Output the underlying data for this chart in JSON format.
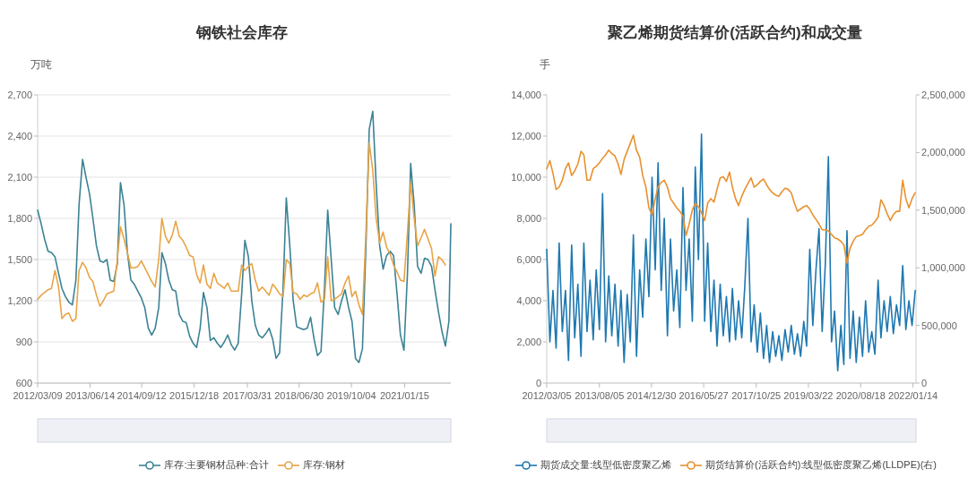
{
  "chart_data": [
    {
      "type": "line",
      "title": "钢铁社会库存",
      "ylabel": "万吨",
      "x": [
        "2012-03-09",
        "2012-04-09",
        "2012-05-09",
        "2012-06-09",
        "2012-07-09",
        "2012-08-09",
        "2012-09-09",
        "2012-10-09",
        "2012-11-09",
        "2012-12-09",
        "2013-01-09",
        "2013-02-09",
        "2013-03-09",
        "2013-04-09",
        "2013-05-09",
        "2013-06-09",
        "2013-07-09",
        "2013-08-09",
        "2013-09-09",
        "2013-10-09",
        "2013-11-09",
        "2013-12-09",
        "2014-01-09",
        "2014-02-09",
        "2014-03-09",
        "2014-04-09",
        "2014-05-09",
        "2014-06-09",
        "2014-07-09",
        "2014-08-09",
        "2014-09-09",
        "2014-10-09",
        "2014-11-09",
        "2014-12-09",
        "2015-01-09",
        "2015-02-09",
        "2015-03-09",
        "2015-04-09",
        "2015-05-09",
        "2015-06-09",
        "2015-07-09",
        "2015-08-09",
        "2015-09-09",
        "2015-10-09",
        "2015-11-09",
        "2015-12-09",
        "2016-01-09",
        "2016-02-09",
        "2016-03-09",
        "2016-04-09",
        "2016-05-09",
        "2016-06-09",
        "2016-07-09",
        "2016-08-09",
        "2016-09-09",
        "2016-10-09",
        "2016-11-09",
        "2016-12-09",
        "2017-01-09",
        "2017-02-09",
        "2017-03-09",
        "2017-04-09",
        "2017-05-09",
        "2017-06-09",
        "2017-07-09",
        "2017-08-09",
        "2017-09-09",
        "2017-10-09",
        "2017-11-09",
        "2017-12-09",
        "2018-01-09",
        "2018-02-09",
        "2018-03-09",
        "2018-04-09",
        "2018-05-09",
        "2018-06-09",
        "2018-07-09",
        "2018-08-09",
        "2018-09-09",
        "2018-10-09",
        "2018-11-09",
        "2018-12-09",
        "2019-01-09",
        "2019-02-09",
        "2019-03-09",
        "2019-04-09",
        "2019-05-09",
        "2019-06-09",
        "2019-07-09",
        "2019-08-09",
        "2019-09-09",
        "2019-10-09",
        "2019-11-09",
        "2019-12-09",
        "2020-01-09",
        "2020-02-09",
        "2020-03-09",
        "2020-04-09",
        "2020-05-09",
        "2020-06-09",
        "2020-07-09",
        "2020-08-09",
        "2020-09-09",
        "2020-10-09",
        "2020-11-09",
        "2020-12-09",
        "2021-01-09",
        "2021-02-09",
        "2021-03-09",
        "2021-04-09",
        "2021-05-09",
        "2021-06-09",
        "2021-07-09",
        "2021-08-09",
        "2021-09-09",
        "2021-10-09",
        "2021-11-09",
        "2021-12-09",
        "2022-01-09",
        "2022-02-09",
        "2022-02-26"
      ],
      "xlim": [
        "2012-03-09",
        "2022-02-26"
      ],
      "xticks": [
        {
          "value": "2012-03-09",
          "label": "2012/03/09"
        },
        {
          "value": "2013-06-14",
          "label": "2013/06/14"
        },
        {
          "value": "2014-09-12",
          "label": "2014/09/12"
        },
        {
          "value": "2015-12-18",
          "label": "2015/12/18"
        },
        {
          "value": "2017-03-31",
          "label": "2017/03/31"
        },
        {
          "value": "2018-06-30",
          "label": "2018/06/30"
        },
        {
          "value": "2019-10-04",
          "label": "2019/10/04"
        },
        {
          "value": "2021-01-15",
          "label": "2021/01/15"
        }
      ],
      "ylim": [
        600,
        2700
      ],
      "yticks": [
        600,
        900,
        {
          "value": 1200,
          "label": "1,200"
        },
        {
          "value": 1500,
          "label": "1,500"
        },
        {
          "value": 1800,
          "label": "1,800"
        },
        {
          "value": 2100,
          "label": "2,100"
        },
        {
          "value": 2400,
          "label": "2,400"
        },
        {
          "value": 2700,
          "label": "2,700"
        }
      ],
      "grid": "y",
      "legend": "bottom",
      "series": [
        {
          "name": "库存:主要钢材品种:合计",
          "color": "#3b8295",
          "values": [
            1860,
            1760,
            1650,
            1560,
            1550,
            1520,
            1400,
            1290,
            1230,
            1190,
            1170,
            1350,
            1900,
            2230,
            2100,
            1980,
            1800,
            1600,
            1490,
            1480,
            1500,
            1350,
            1340,
            1470,
            2060,
            1900,
            1550,
            1350,
            1320,
            1270,
            1220,
            1150,
            1000,
            950,
            1000,
            1150,
            1550,
            1470,
            1350,
            1280,
            1270,
            1100,
            1050,
            1040,
            940,
            890,
            860,
            1000,
            1260,
            1150,
            910,
            930,
            890,
            860,
            900,
            950,
            880,
            840,
            890,
            1250,
            1640,
            1520,
            1200,
            1020,
            950,
            930,
            960,
            1000,
            920,
            780,
            820,
            1300,
            1950,
            1600,
            1200,
            1010,
            1000,
            990,
            1000,
            1080,
            920,
            800,
            830,
            1300,
            1860,
            1500,
            1150,
            1100,
            1200,
            1280,
            1150,
            1050,
            780,
            750,
            850,
            1600,
            2450,
            2580,
            2050,
            1600,
            1430,
            1530,
            1560,
            1530,
            1250,
            950,
            840,
            1400,
            2200,
            1900,
            1450,
            1400,
            1510,
            1500,
            1450,
            1280,
            1120,
            980,
            870,
            1050,
            1760
          ]
        },
        {
          "name": "库存:钢材",
          "color": "#e8a445",
          "values": [
            1210,
            1240,
            1260,
            1280,
            1290,
            1420,
            1300,
            1070,
            1100,
            1110,
            1050,
            1070,
            1420,
            1480,
            1440,
            1370,
            1340,
            1240,
            1160,
            1200,
            1250,
            1260,
            1270,
            1500,
            1740,
            1650,
            1550,
            1440,
            1440,
            1450,
            1490,
            1440,
            1390,
            1340,
            1300,
            1500,
            1800,
            1670,
            1620,
            1680,
            1780,
            1670,
            1640,
            1590,
            1530,
            1520,
            1390,
            1330,
            1460,
            1320,
            1290,
            1400,
            1330,
            1310,
            1290,
            1330,
            1270,
            1270,
            1270,
            1460,
            1420,
            1450,
            1470,
            1350,
            1270,
            1300,
            1270,
            1240,
            1320,
            1290,
            1250,
            1230,
            1500,
            1470,
            1260,
            1250,
            1210,
            1240,
            1230,
            1250,
            1260,
            1330,
            1190,
            1210,
            1520,
            1200,
            1210,
            1230,
            1250,
            1330,
            1380,
            1230,
            1270,
            1170,
            1100,
            1700,
            2350,
            2150,
            1800,
            1620,
            1700,
            1590,
            1540,
            1460,
            1410,
            1350,
            1340,
            1700,
            2060,
            1800,
            1600,
            1660,
            1720,
            1650,
            1580,
            1380,
            1520,
            1500,
            1460,
            null,
            null
          ]
        }
      ]
    },
    {
      "type": "line",
      "title": "聚乙烯期货结算价(活跃合约)和成交量",
      "ylabel": "手",
      "x": [
        "2012-03-05",
        "2012-04-05",
        "2012-05-05",
        "2012-06-05",
        "2012-07-05",
        "2012-08-05",
        "2012-09-05",
        "2012-10-05",
        "2012-11-05",
        "2012-12-05",
        "2013-01-05",
        "2013-02-05",
        "2013-03-05",
        "2013-04-05",
        "2013-05-05",
        "2013-06-05",
        "2013-07-05",
        "2013-08-05",
        "2013-09-05",
        "2013-10-05",
        "2013-11-05",
        "2013-12-05",
        "2014-01-05",
        "2014-02-05",
        "2014-03-05",
        "2014-04-05",
        "2014-05-05",
        "2014-06-05",
        "2014-07-05",
        "2014-08-05",
        "2014-09-05",
        "2014-10-05",
        "2014-11-05",
        "2014-12-05",
        "2015-01-05",
        "2015-02-05",
        "2015-03-05",
        "2015-04-05",
        "2015-05-05",
        "2015-06-05",
        "2015-07-05",
        "2015-08-05",
        "2015-09-05",
        "2015-10-05",
        "2015-11-05",
        "2015-12-05",
        "2016-01-05",
        "2016-02-05",
        "2016-03-05",
        "2016-04-05",
        "2016-05-05",
        "2016-06-05",
        "2016-07-05",
        "2016-08-05",
        "2016-09-05",
        "2016-10-05",
        "2016-11-05",
        "2016-12-05",
        "2017-01-05",
        "2017-02-05",
        "2017-03-05",
        "2017-04-05",
        "2017-05-05",
        "2017-06-05",
        "2017-07-05",
        "2017-08-05",
        "2017-09-05",
        "2017-10-05",
        "2017-11-05",
        "2017-12-05",
        "2018-01-05",
        "2018-02-05",
        "2018-03-05",
        "2018-04-05",
        "2018-05-05",
        "2018-06-05",
        "2018-07-05",
        "2018-08-05",
        "2018-09-05",
        "2018-10-05",
        "2018-11-05",
        "2018-12-05",
        "2019-01-05",
        "2019-02-05",
        "2019-03-05",
        "2019-04-05",
        "2019-05-05",
        "2019-06-05",
        "2019-07-05",
        "2019-08-05",
        "2019-09-05",
        "2019-10-05",
        "2019-11-05",
        "2019-12-05",
        "2020-01-05",
        "2020-02-05",
        "2020-03-05",
        "2020-04-05",
        "2020-05-05",
        "2020-06-05",
        "2020-07-05",
        "2020-08-05",
        "2020-09-05",
        "2020-10-05",
        "2020-11-05",
        "2020-12-05",
        "2021-01-05",
        "2021-02-05",
        "2021-03-05",
        "2021-04-05",
        "2021-05-05",
        "2021-06-05",
        "2021-07-05",
        "2021-08-05",
        "2021-09-05",
        "2021-10-05",
        "2021-11-05",
        "2021-12-05",
        "2022-01-05",
        "2022-02-05"
      ],
      "xlim": [
        "2012-03-05",
        "2022-02-13"
      ],
      "xticks": [
        {
          "value": "2012-03-05",
          "label": "2012/03/05"
        },
        {
          "value": "2013-08-05",
          "label": "2013/08/05"
        },
        {
          "value": "2014-12-30",
          "label": "2014/12/30"
        },
        {
          "value": "2016-05-27",
          "label": "2016/05/27"
        },
        {
          "value": "2017-10-25",
          "label": "2017/10/25"
        },
        {
          "value": "2019-03-22",
          "label": "2019/03/22"
        },
        {
          "value": "2020-08-18",
          "label": "2020/08/18"
        },
        {
          "value": "2022-01-14",
          "label": "2022/01/14"
        }
      ],
      "ylim": [
        0,
        14000
      ],
      "yticks": [
        0,
        {
          "value": 2000,
          "label": "2,000"
        },
        {
          "value": 4000,
          "label": "4,000"
        },
        {
          "value": 6000,
          "label": "6,000"
        },
        {
          "value": 8000,
          "label": "8,000"
        },
        {
          "value": 10000,
          "label": "10,000"
        },
        {
          "value": 12000,
          "label": "12,000"
        },
        {
          "value": 14000,
          "label": "14,000"
        }
      ],
      "y2lim": [
        0,
        2500000
      ],
      "y2ticks": [
        0,
        {
          "value": 500000,
          "label": "500,000"
        },
        {
          "value": 1000000,
          "label": "1,000,000"
        },
        {
          "value": 1500000,
          "label": "1,500,000"
        },
        {
          "value": 2000000,
          "label": "2,000,000"
        },
        {
          "value": 2500000,
          "label": "2,500,000"
        }
      ],
      "legend": "bottom",
      "series": [
        {
          "name": "期货成交量:线型低密度聚乙烯",
          "color": "#1e78b0",
          "values": [
            6500,
            2000,
            4500,
            1700,
            6800,
            2500,
            4500,
            1100,
            6700,
            2200,
            4800,
            1300,
            6800,
            2500,
            5000,
            2100,
            5500,
            2600,
            9200,
            2000,
            5200,
            2300,
            4800,
            1800,
            4500,
            1000,
            4300,
            2000,
            7200,
            1300,
            5500,
            3200,
            7000,
            4200,
            10000,
            5500,
            10700,
            4500,
            8000,
            2300,
            7000,
            3500,
            5500,
            2700,
            9500,
            4500,
            7000,
            3000,
            10500,
            6000,
            12100,
            3000,
            6800,
            2500,
            5000,
            1800,
            4800,
            2300,
            4200,
            2000,
            4600,
            2100,
            4000,
            2200,
            4700,
            8000,
            2000,
            3800,
            1500,
            3400,
            1200,
            2800,
            1000,
            2500,
            1300,
            2300,
            1100,
            2600,
            1500,
            2800,
            1400,
            2400,
            1300,
            3000,
            1800,
            6500,
            2800,
            5500,
            7500,
            2500,
            5800,
            11000,
            2000,
            3500,
            600,
            2800,
            900,
            7400,
            1200,
            3500,
            1000,
            3200,
            1300,
            4000,
            1500,
            2500,
            1400,
            5000,
            2200,
            4000,
            2500,
            4200,
            2400,
            3800,
            2800,
            5700,
            2600,
            4000,
            2800,
            4500
          ]
        },
        {
          "name": "期货结算价(活跃合约):线型低密度聚乙烯(LLDPE)(右)",
          "color": "#e8912d",
          "axis": "y2",
          "values": [
            1860000,
            1930000,
            1820000,
            1680000,
            1700000,
            1760000,
            1860000,
            1910000,
            1800000,
            1840000,
            1900000,
            2010000,
            1980000,
            1760000,
            1760000,
            1860000,
            1880000,
            1910000,
            1950000,
            1980000,
            2020000,
            1990000,
            1970000,
            1900000,
            1810000,
            1940000,
            2010000,
            2080000,
            2150000,
            2020000,
            1960000,
            1800000,
            1700000,
            1520000,
            1460000,
            1600000,
            1700000,
            1740000,
            1760000,
            1700000,
            1600000,
            1560000,
            1520000,
            1490000,
            1450000,
            1280000,
            1380000,
            1500000,
            1560000,
            1530000,
            1480000,
            1410000,
            1560000,
            1600000,
            1570000,
            1680000,
            1780000,
            1790000,
            1750000,
            1830000,
            1700000,
            1600000,
            1540000,
            1620000,
            1680000,
            1730000,
            1780000,
            1700000,
            1720000,
            1750000,
            1770000,
            1720000,
            1680000,
            1650000,
            1630000,
            1620000,
            1660000,
            1690000,
            1680000,
            1650000,
            1560000,
            1490000,
            1510000,
            1530000,
            1540000,
            1510000,
            1460000,
            1420000,
            1380000,
            1330000,
            1330000,
            1320000,
            1290000,
            1260000,
            1250000,
            1230000,
            1200000,
            1040000,
            1170000,
            1230000,
            1270000,
            1280000,
            1290000,
            1330000,
            1360000,
            1370000,
            1400000,
            1440000,
            1590000,
            1540000,
            1470000,
            1410000,
            1460000,
            1490000,
            1490000,
            1760000,
            1600000,
            1520000,
            1600000,
            1650000
          ]
        }
      ]
    }
  ]
}
